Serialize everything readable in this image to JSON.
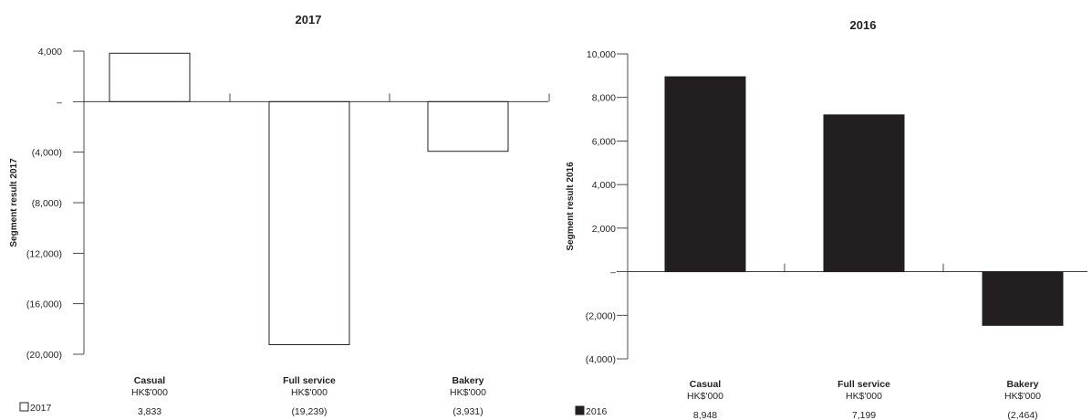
{
  "chart_data": [
    {
      "type": "bar",
      "title": "2017",
      "ylabel": "Segment result 2017",
      "categories": [
        "Casual",
        "Full service",
        "Bakery"
      ],
      "category_unit": "HK$'000",
      "ylim": [
        -20000,
        4000
      ],
      "yticks": [
        4000,
        0,
        -4000,
        -8000,
        -12000,
        -16000,
        -20000
      ],
      "ytick_labels": [
        "4,000",
        "–",
        "(4,000)",
        "(8,000)",
        "(12,000)",
        "(16,000)",
        "(20,000)"
      ],
      "series": [
        {
          "name": "2017",
          "values": [
            3833,
            -19239,
            -3931
          ],
          "value_labels": [
            "3,833",
            "(19,239)",
            "(3,931)"
          ]
        }
      ],
      "bar_fill": "#ffffff",
      "bar_stroke": "#231f20",
      "grid": false,
      "legend": "bottom-left"
    },
    {
      "type": "bar",
      "title": "2016",
      "ylabel": "Segment result 2016",
      "categories": [
        "Casual",
        "Full service",
        "Bakery"
      ],
      "category_unit": "HK$'000",
      "ylim": [
        -4000,
        10000
      ],
      "yticks": [
        10000,
        8000,
        6000,
        4000,
        2000,
        0,
        -2000,
        -4000
      ],
      "ytick_labels": [
        "10,000",
        "8,000",
        "6,000",
        "4,000",
        "2,000",
        "–",
        "(2,000)",
        "(4,000)"
      ],
      "series": [
        {
          "name": "2016",
          "values": [
            8948,
            7199,
            -2464
          ],
          "value_labels": [
            "8,948",
            "7,199",
            "(2,464)"
          ]
        }
      ],
      "bar_fill": "#231f20",
      "bar_stroke": "#231f20",
      "grid": false,
      "legend": "bottom-left"
    }
  ]
}
